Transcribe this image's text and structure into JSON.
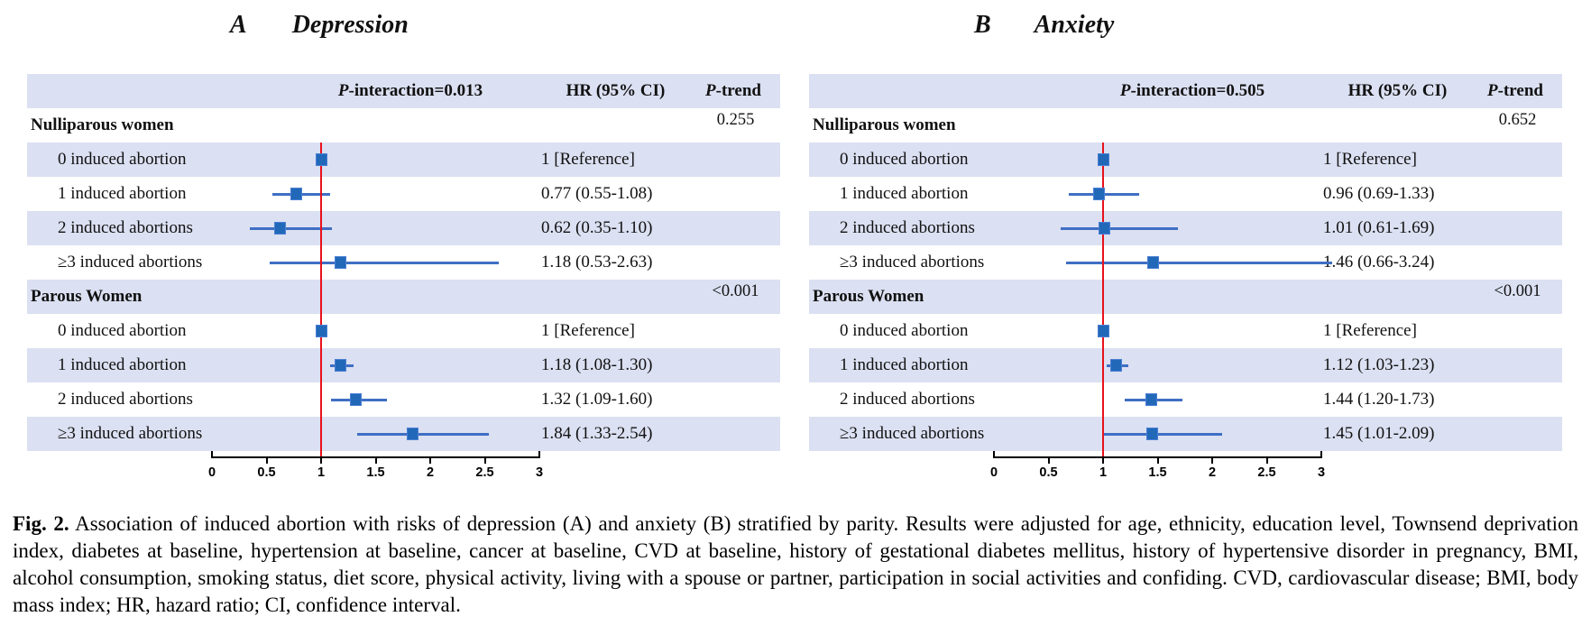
{
  "figure": {
    "caption_bold": "Fig. 2.",
    "caption_text": "Association of induced abortion with risks of depression (A) and anxiety (B) stratified by parity. Results were adjusted for age, ethnicity, education level, Townsend deprivation index, diabetes at baseline, hypertension at baseline, cancer at baseline, CVD at baseline, history of gestational diabetes mellitus, history of hypertensive disorder in pregnancy, BMI, alcohol consumption, smoking status, diet score, physical activity, living with a spouse or partner, participation in social activities and confiding. CVD, cardiovascular disease; BMI, body mass index; HR, hazard ratio; CI, confidence interval."
  },
  "colors": {
    "stripe": "#dbe0f2",
    "marker_fill": "#2268b8",
    "marker_border": "#4a7fd4",
    "ci_line": "#3f6fc4",
    "reference_line": "#e8111c",
    "axis": "#000000"
  },
  "axis": {
    "ticks": [
      "0",
      "0.5",
      "1",
      "1.5",
      "2",
      "2.5",
      "3"
    ],
    "min": 0,
    "max": 3,
    "reference_value": 1
  },
  "panels": [
    {
      "letter": "A",
      "title": "Depression",
      "header": {
        "p_italic": "P",
        "interaction_rest": "-interaction=0.013",
        "hr_ci": "HR (95% CI)",
        "ptrend_italic": "P",
        "ptrend_rest": "-trend"
      },
      "groups": [
        {
          "name": "Nulliparous women",
          "p_trend": "0.255",
          "rows": [
            {
              "label": "0 induced abortion",
              "hr": 1,
              "lo": null,
              "hi": null,
              "hr_text": "1 [Reference]"
            },
            {
              "label": "1 induced abortion",
              "hr": 0.77,
              "lo": 0.55,
              "hi": 1.08,
              "hr_text": "0.77 (0.55-1.08)"
            },
            {
              "label": "2 induced abortions",
              "hr": 0.62,
              "lo": 0.35,
              "hi": 1.1,
              "hr_text": "0.62 (0.35-1.10)"
            },
            {
              "label": "≥3 induced abortions",
              "hr": 1.18,
              "lo": 0.53,
              "hi": 2.63,
              "hr_text": "1.18 (0.53-2.63)"
            }
          ]
        },
        {
          "name": "Parous Women",
          "p_trend": "<0.001",
          "rows": [
            {
              "label": "0 induced abortion",
              "hr": 1,
              "lo": null,
              "hi": null,
              "hr_text": "1 [Reference]"
            },
            {
              "label": "1 induced abortion",
              "hr": 1.18,
              "lo": 1.08,
              "hi": 1.3,
              "hr_text": "1.18 (1.08-1.30)"
            },
            {
              "label": "2 induced abortions",
              "hr": 1.32,
              "lo": 1.09,
              "hi": 1.6,
              "hr_text": "1.32 (1.09-1.60)"
            },
            {
              "label": "≥3 induced abortions",
              "hr": 1.84,
              "lo": 1.33,
              "hi": 2.54,
              "hr_text": "1.84 (1.33-2.54)"
            }
          ]
        }
      ]
    },
    {
      "letter": "B",
      "title": "Anxiety",
      "header": {
        "p_italic": "P",
        "interaction_rest": "-interaction=0.505",
        "hr_ci": "HR (95% CI)",
        "ptrend_italic": "P",
        "ptrend_rest": "-trend"
      },
      "groups": [
        {
          "name": "Nulliparous women",
          "p_trend": "0.652",
          "rows": [
            {
              "label": "0 induced abortion",
              "hr": 1,
              "lo": null,
              "hi": null,
              "hr_text": "1 [Reference]"
            },
            {
              "label": "1 induced abortion",
              "hr": 0.96,
              "lo": 0.69,
              "hi": 1.33,
              "hr_text": "0.96 (0.69-1.33)"
            },
            {
              "label": "2 induced abortions",
              "hr": 1.01,
              "lo": 0.61,
              "hi": 1.69,
              "hr_text": "1.01 (0.61-1.69)"
            },
            {
              "label": "≥3 induced abortions",
              "hr": 1.46,
              "lo": 0.66,
              "hi": 3.24,
              "hr_text": "1.46 (0.66-3.24)"
            }
          ]
        },
        {
          "name": "Parous Women",
          "p_trend": "<0.001",
          "rows": [
            {
              "label": "0 induced abortion",
              "hr": 1,
              "lo": null,
              "hi": null,
              "hr_text": "1 [Reference]"
            },
            {
              "label": "1 induced abortion",
              "hr": 1.12,
              "lo": 1.03,
              "hi": 1.23,
              "hr_text": "1.12 (1.03-1.23)"
            },
            {
              "label": "2 induced abortions",
              "hr": 1.44,
              "lo": 1.2,
              "hi": 1.73,
              "hr_text": "1.44 (1.20-1.73)"
            },
            {
              "label": "≥3 induced abortions",
              "hr": 1.45,
              "lo": 1.01,
              "hi": 2.09,
              "hr_text": "1.45 (1.01-2.09)"
            }
          ]
        }
      ]
    }
  ],
  "chart_data": [
    {
      "type": "scatter",
      "subtype": "forest-plot",
      "title": "A Depression",
      "p_interaction": "0.013",
      "x_range": [
        0,
        3
      ],
      "x_ticks": [
        0,
        0.5,
        1,
        1.5,
        2,
        2.5,
        3
      ],
      "reference_line": 1,
      "legend_position": "none",
      "grid": false,
      "series": [
        {
          "group": "Nulliparous women",
          "p_trend": "0.255",
          "categories": [
            "0 induced abortion",
            "1 induced abortion",
            "2 induced abortions",
            "≥3 induced abortions"
          ],
          "hr": [
            1,
            0.77,
            0.62,
            1.18
          ],
          "ci_low": [
            null,
            0.55,
            0.35,
            0.53
          ],
          "ci_high": [
            null,
            1.08,
            1.1,
            2.63
          ]
        },
        {
          "group": "Parous Women",
          "p_trend": "<0.001",
          "categories": [
            "0 induced abortion",
            "1 induced abortion",
            "2 induced abortions",
            "≥3 induced abortions"
          ],
          "hr": [
            1,
            1.18,
            1.32,
            1.84
          ],
          "ci_low": [
            null,
            1.08,
            1.09,
            1.33
          ],
          "ci_high": [
            null,
            1.3,
            1.6,
            2.54
          ]
        }
      ]
    },
    {
      "type": "scatter",
      "subtype": "forest-plot",
      "title": "B Anxiety",
      "p_interaction": "0.505",
      "x_range": [
        0,
        3
      ],
      "x_ticks": [
        0,
        0.5,
        1,
        1.5,
        2,
        2.5,
        3
      ],
      "reference_line": 1,
      "legend_position": "none",
      "grid": false,
      "series": [
        {
          "group": "Nulliparous women",
          "p_trend": "0.652",
          "categories": [
            "0 induced abortion",
            "1 induced abortion",
            "2 induced abortions",
            "≥3 induced abortions"
          ],
          "hr": [
            1,
            0.96,
            1.01,
            1.46
          ],
          "ci_low": [
            null,
            0.69,
            0.61,
            0.66
          ],
          "ci_high": [
            null,
            1.33,
            1.69,
            3.24
          ]
        },
        {
          "group": "Parous Women",
          "p_trend": "<0.001",
          "categories": [
            "0 induced abortion",
            "1 induced abortion",
            "2 induced abortions",
            "≥3 induced abortions"
          ],
          "hr": [
            1,
            1.12,
            1.44,
            1.45
          ],
          "ci_low": [
            null,
            1.03,
            1.2,
            1.01
          ],
          "ci_high": [
            null,
            1.23,
            1.73,
            2.09
          ]
        }
      ]
    }
  ]
}
